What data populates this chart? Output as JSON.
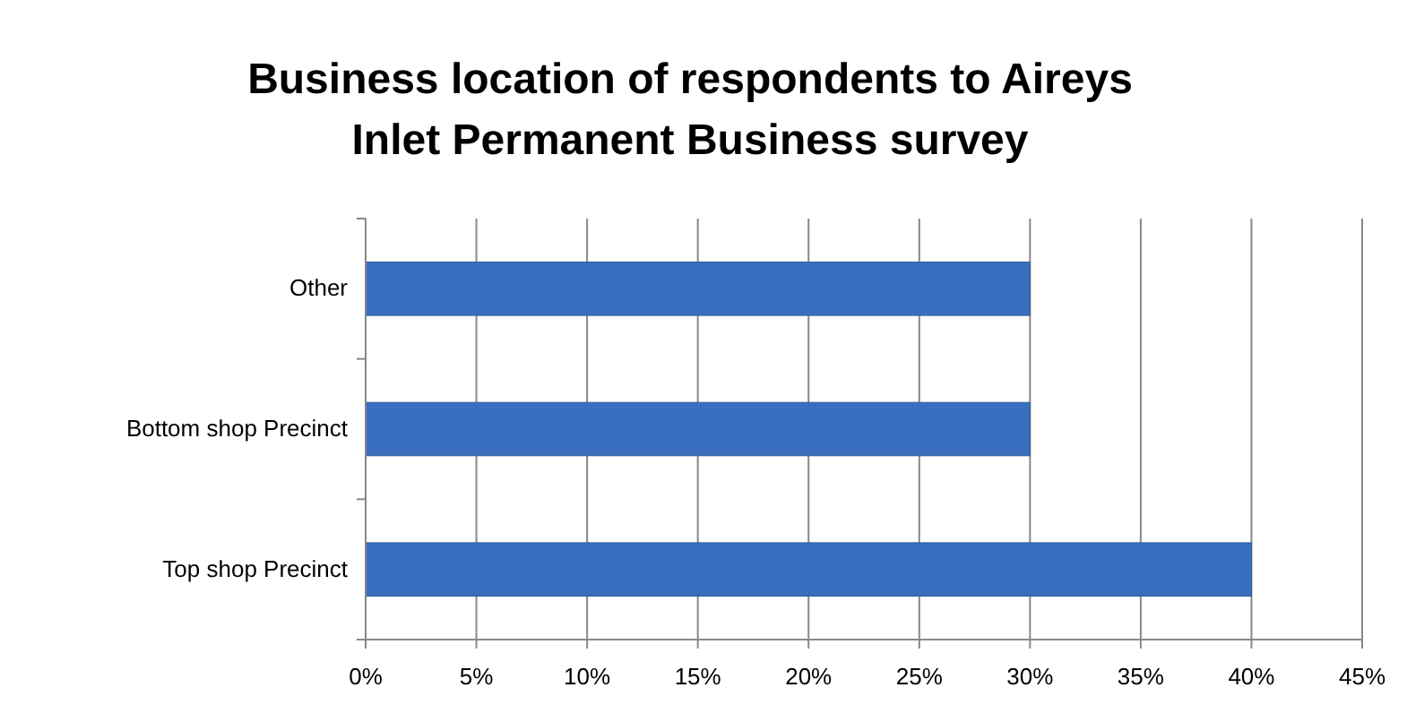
{
  "chart_data": {
    "type": "bar",
    "orientation": "horizontal",
    "title": "Business location of respondents to Aireys Inlet Permanent Business survey",
    "categories": [
      "Other",
      "Bottom shop Precinct",
      "Top shop Precinct"
    ],
    "values": [
      30,
      30,
      40
    ],
    "color": "#3a6fbf",
    "xlim": [
      0,
      45
    ],
    "xticks": [
      {
        "value": 0,
        "label": "0%"
      },
      {
        "value": 5,
        "label": "5%"
      },
      {
        "value": 10,
        "label": "10%"
      },
      {
        "value": 15,
        "label": "15%"
      },
      {
        "value": 20,
        "label": "20%"
      },
      {
        "value": 25,
        "label": "25%"
      },
      {
        "value": 30,
        "label": "30%"
      },
      {
        "value": 35,
        "label": "35%"
      },
      {
        "value": 40,
        "label": "40%"
      },
      {
        "value": 45,
        "label": "45%"
      }
    ],
    "grid": "x"
  }
}
